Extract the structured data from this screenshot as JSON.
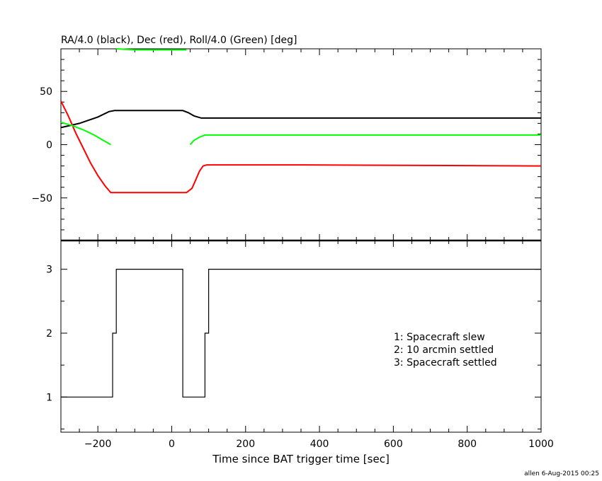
{
  "chart_data": [
    {
      "type": "line",
      "title": "RA/4.0 (black), Dec (red), Roll/4.0 (Green) [deg]",
      "xlim": [
        -300,
        1000
      ],
      "ylim": [
        -90,
        90
      ],
      "yticks": [
        -50,
        0,
        50
      ],
      "yticklabels": [
        "−50",
        "0",
        "50"
      ],
      "grid": false,
      "series": [
        {
          "color": "#000000",
          "points": [
            [
              -300,
              16
            ],
            [
              -250,
              20
            ],
            [
              -200,
              26
            ],
            [
              -170,
              31
            ],
            [
              -155,
              32
            ],
            [
              -100,
              32
            ],
            [
              -40,
              32
            ],
            [
              0,
              32
            ],
            [
              30,
              32
            ],
            [
              45,
              30
            ],
            [
              60,
              27
            ],
            [
              80,
              25
            ],
            [
              100,
              25
            ],
            [
              355,
              25
            ],
            [
              1000,
              25
            ]
          ]
        },
        {
          "color": "#ff0000",
          "points": [
            [
              -300,
              41
            ],
            [
              -280,
              27
            ],
            [
              -260,
              11
            ],
            [
              -240,
              -3
            ],
            [
              -220,
              -17
            ],
            [
              -200,
              -29
            ],
            [
              -180,
              -39
            ],
            [
              -165,
              -45
            ],
            [
              -150,
              -45
            ],
            [
              -100,
              -45
            ],
            [
              -40,
              -45
            ],
            [
              0,
              -45
            ],
            [
              40,
              -45
            ],
            [
              55,
              -41
            ],
            [
              65,
              -33
            ],
            [
              75,
              -25
            ],
            [
              85,
              -20
            ],
            [
              95,
              -19
            ],
            [
              355,
              -19
            ],
            [
              1000,
              -20
            ]
          ]
        },
        {
          "color": "#00ff00",
          "segments": [
            [
              [
                -300,
                21
              ],
              [
                -270,
                18
              ],
              [
                -240,
                14
              ],
              [
                -210,
                9
              ],
              [
                -185,
                4
              ],
              [
                -165,
                0
              ]
            ],
            [
              [
                -150,
                90
              ],
              [
                -100,
                89
              ],
              [
                -40,
                89
              ],
              [
                40,
                89
              ]
            ],
            [
              [
                50,
                0
              ],
              [
                60,
                4
              ],
              [
                75,
                7
              ],
              [
                90,
                9
              ],
              [
                355,
                9
              ],
              [
                1000,
                9
              ]
            ]
          ]
        }
      ]
    },
    {
      "type": "line",
      "xlabel": "Time since BAT trigger time [sec]",
      "xlim": [
        -300,
        1000
      ],
      "ylim": [
        0.45,
        3.45
      ],
      "xticks": [
        -200,
        0,
        200,
        400,
        600,
        800,
        1000
      ],
      "xticklabels": [
        "−200",
        "0",
        "200",
        "400",
        "600",
        "800",
        "1000"
      ],
      "yticks": [
        1,
        2,
        3
      ],
      "yticklabels": [
        "1",
        "2",
        "3"
      ],
      "grid": false,
      "series": [
        {
          "color": "#000000",
          "step_points": [
            [
              -300,
              1
            ],
            [
              -160,
              1
            ],
            [
              -160,
              2
            ],
            [
              -150,
              2
            ],
            [
              -150,
              3
            ],
            [
              30,
              3
            ],
            [
              30,
              1
            ],
            [
              90,
              1
            ],
            [
              90,
              2
            ],
            [
              100,
              2
            ],
            [
              100,
              3
            ],
            [
              1000,
              3
            ]
          ]
        }
      ],
      "annotations": [
        "1: Spacecraft slew",
        "2: 10 arcmin settled",
        "3: Spacecraft settled"
      ]
    }
  ],
  "footer": "allen   6-Aug-2015 00:25"
}
